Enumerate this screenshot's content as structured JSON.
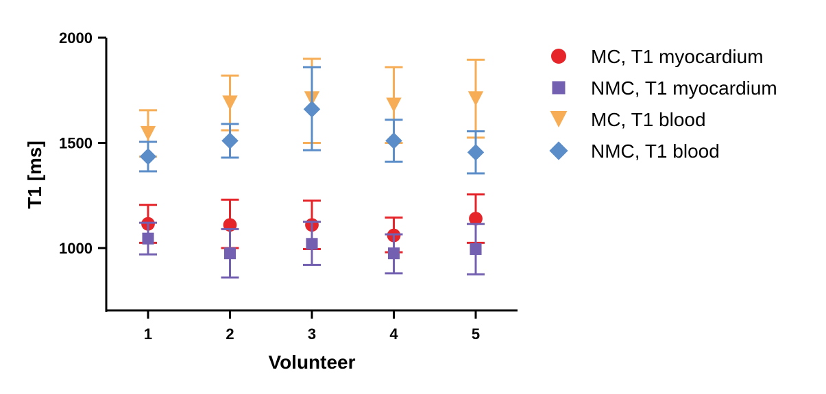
{
  "chart_data": {
    "type": "scatter",
    "title": "",
    "xlabel": "Volunteer",
    "ylabel": "T1 [ms]",
    "x": [
      1,
      2,
      3,
      4,
      5
    ],
    "x_tick_labels": [
      "1",
      "2",
      "3",
      "4",
      "5"
    ],
    "y_ticks": [
      1000,
      1500,
      2000
    ],
    "y_tick_labels": [
      "1000",
      "1500",
      "2000"
    ],
    "ylim": [
      710,
      2000
    ],
    "xlim": [
      0.5,
      5.5
    ],
    "grid": false,
    "legend_position": "right",
    "series": [
      {
        "name": "MC, T1 myocardium",
        "marker": "circle",
        "color": "#e5252a",
        "values": [
          1115,
          1110,
          1110,
          1060,
          1140
        ],
        "error_upper": [
          1205,
          1230,
          1225,
          1145,
          1255
        ],
        "error_lower": [
          1025,
          1000,
          995,
          980,
          1025
        ]
      },
      {
        "name": "NMC, T1 myocardium",
        "marker": "square",
        "color": "#7460b0",
        "values": [
          1045,
          975,
          1020,
          975,
          995
        ],
        "error_upper": [
          1120,
          1090,
          1125,
          1065,
          1115
        ],
        "error_lower": [
          970,
          860,
          920,
          880,
          875
        ]
      },
      {
        "name": "MC, T1 blood",
        "marker": "triangle-down",
        "color": "#f6ad55",
        "values": [
          1545,
          1690,
          1710,
          1680,
          1710
        ],
        "error_upper": [
          1655,
          1820,
          1900,
          1860,
          1895
        ],
        "error_lower": [
          1435,
          1560,
          1500,
          1500,
          1525
        ]
      },
      {
        "name": "NMC, T1 blood",
        "marker": "diamond",
        "color": "#5b8dc9",
        "values": [
          1435,
          1510,
          1660,
          1510,
          1455
        ],
        "error_upper": [
          1505,
          1590,
          1860,
          1610,
          1555
        ],
        "error_lower": [
          1365,
          1430,
          1465,
          1410,
          1355
        ]
      }
    ]
  }
}
